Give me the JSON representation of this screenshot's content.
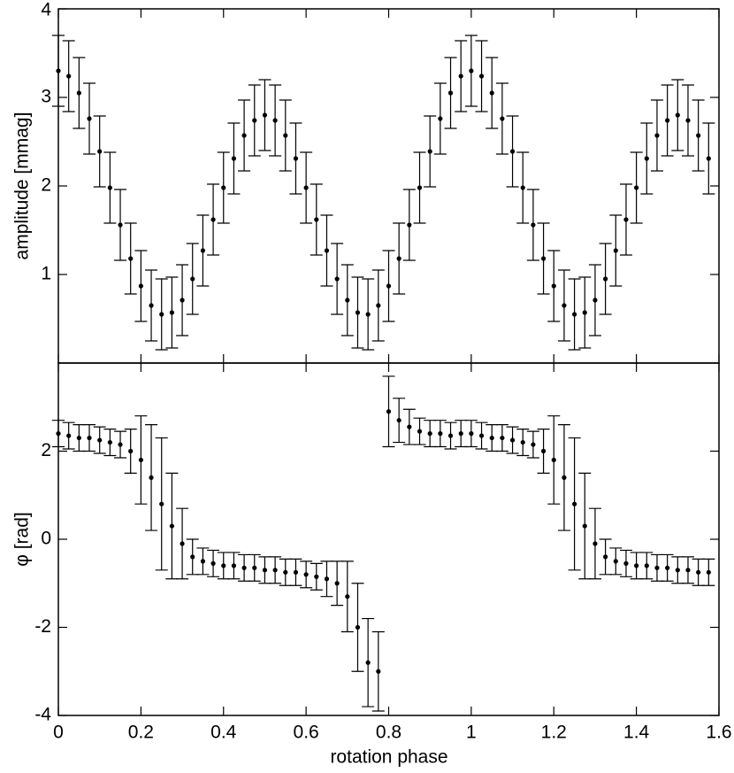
{
  "chart_data": [
    {
      "type": "scatter",
      "ylabel": "amplitude [mmag]",
      "x": [
        0,
        0.025,
        0.05,
        0.075,
        0.1,
        0.125,
        0.15,
        0.175,
        0.2,
        0.225,
        0.25,
        0.275,
        0.3,
        0.325,
        0.35,
        0.375,
        0.4,
        0.425,
        0.45,
        0.475,
        0.5,
        0.525,
        0.55,
        0.575,
        0.6,
        0.625,
        0.65,
        0.675,
        0.7,
        0.725,
        0.75,
        0.775,
        0.8,
        0.825,
        0.85,
        0.875,
        0.9,
        0.925,
        0.95,
        0.975,
        1,
        1.025,
        1.05,
        1.075,
        1.1,
        1.125,
        1.15,
        1.175,
        1.2,
        1.225,
        1.25,
        1.275,
        1.3,
        1.325,
        1.35,
        1.375,
        1.4,
        1.425,
        1.45,
        1.475,
        1.5,
        1.525,
        1.55,
        1.575
      ],
      "values": [
        3.3,
        3.24,
        3.05,
        2.76,
        2.39,
        1.98,
        1.56,
        1.18,
        0.87,
        0.65,
        0.55,
        0.57,
        0.71,
        0.95,
        1.27,
        1.62,
        1.98,
        2.31,
        2.57,
        2.74,
        2.8,
        2.74,
        2.57,
        2.31,
        1.98,
        1.62,
        1.27,
        0.95,
        0.71,
        0.57,
        0.55,
        0.65,
        0.87,
        1.18,
        1.56,
        1.98,
        2.39,
        2.76,
        3.05,
        3.24,
        3.3,
        3.24,
        3.05,
        2.76,
        2.39,
        1.98,
        1.56,
        1.18,
        0.87,
        0.65,
        0.55,
        0.57,
        0.71,
        0.95,
        1.27,
        1.62,
        1.98,
        2.31,
        2.57,
        2.74,
        2.8,
        2.74,
        2.57,
        2.31
      ],
      "errors": [
        0.4,
        0.4,
        0.4,
        0.4,
        0.4,
        0.4,
        0.4,
        0.4,
        0.4,
        0.4,
        0.4,
        0.4,
        0.4,
        0.4,
        0.4,
        0.4,
        0.4,
        0.4,
        0.4,
        0.4,
        0.4,
        0.4,
        0.4,
        0.4,
        0.4,
        0.4,
        0.4,
        0.4,
        0.4,
        0.4,
        0.4,
        0.4,
        0.4,
        0.4,
        0.4,
        0.4,
        0.4,
        0.4,
        0.4,
        0.4,
        0.4,
        0.4,
        0.4,
        0.4,
        0.4,
        0.4,
        0.4,
        0.4,
        0.4,
        0.4,
        0.4,
        0.4,
        0.4,
        0.4,
        0.4,
        0.4,
        0.4,
        0.4,
        0.4,
        0.4,
        0.4,
        0.4,
        0.4,
        0.4
      ],
      "color": "#000000",
      "xlim": [
        0,
        1.6
      ],
      "xticks": [
        0,
        0.2,
        0.4,
        0.6,
        0.8,
        1,
        1.2,
        1.4,
        1.6
      ],
      "ylim": [
        0,
        4
      ],
      "yticks": [
        1,
        2,
        3,
        4
      ]
    },
    {
      "type": "scatter",
      "ylabel": "φ [rad]",
      "xlabel": "rotation phase",
      "x": [
        0,
        0.025,
        0.05,
        0.075,
        0.1,
        0.125,
        0.15,
        0.175,
        0.2,
        0.225,
        0.25,
        0.275,
        0.3,
        0.325,
        0.35,
        0.375,
        0.4,
        0.425,
        0.45,
        0.475,
        0.5,
        0.525,
        0.55,
        0.575,
        0.6,
        0.625,
        0.65,
        0.675,
        0.7,
        0.725,
        0.75,
        0.775,
        0.8,
        0.825,
        0.85,
        0.875,
        0.9,
        0.925,
        0.95,
        0.975,
        1,
        1.025,
        1.05,
        1.075,
        1.1,
        1.125,
        1.15,
        1.175,
        1.2,
        1.225,
        1.25,
        1.275,
        1.3,
        1.325,
        1.35,
        1.375,
        1.4,
        1.425,
        1.45,
        1.475,
        1.5,
        1.525,
        1.55,
        1.575
      ],
      "values": [
        2.4,
        2.35,
        2.3,
        2.3,
        2.25,
        2.2,
        2.15,
        2.0,
        1.8,
        1.4,
        0.8,
        0.3,
        -0.1,
        -0.4,
        -0.5,
        -0.55,
        -0.6,
        -0.6,
        -0.65,
        -0.65,
        -0.7,
        -0.7,
        -0.75,
        -0.75,
        -0.8,
        -0.85,
        -0.9,
        -1.0,
        -1.3,
        -2.0,
        -2.8,
        -3.0,
        2.9,
        2.7,
        2.55,
        2.45,
        2.4,
        2.4,
        2.35,
        2.4,
        2.4,
        2.35,
        2.3,
        2.3,
        2.25,
        2.2,
        2.15,
        2.0,
        1.8,
        1.4,
        0.8,
        0.3,
        -0.1,
        -0.4,
        -0.5,
        -0.55,
        -0.6,
        -0.6,
        -0.65,
        -0.65,
        -0.7,
        -0.7,
        -0.75,
        -0.75
      ],
      "errors": [
        0.3,
        0.3,
        0.3,
        0.3,
        0.3,
        0.3,
        0.3,
        0.5,
        1.0,
        1.2,
        1.5,
        1.2,
        0.8,
        0.4,
        0.3,
        0.3,
        0.3,
        0.3,
        0.3,
        0.3,
        0.3,
        0.3,
        0.3,
        0.3,
        0.3,
        0.3,
        0.4,
        0.5,
        0.8,
        1.0,
        1.0,
        0.9,
        0.8,
        0.5,
        0.4,
        0.3,
        0.3,
        0.3,
        0.3,
        0.3,
        0.3,
        0.3,
        0.3,
        0.3,
        0.3,
        0.3,
        0.3,
        0.5,
        1.0,
        1.2,
        1.5,
        1.2,
        0.8,
        0.4,
        0.3,
        0.3,
        0.3,
        0.3,
        0.3,
        0.3,
        0.3,
        0.3,
        0.3,
        0.3
      ],
      "color": "#000000",
      "xlim": [
        0,
        1.6
      ],
      "xticks": [
        0,
        0.2,
        0.4,
        0.6,
        0.8,
        1,
        1.2,
        1.4,
        1.6
      ],
      "ylim": [
        -4,
        4
      ],
      "yticks": [
        -4,
        -2,
        0,
        2
      ]
    }
  ]
}
